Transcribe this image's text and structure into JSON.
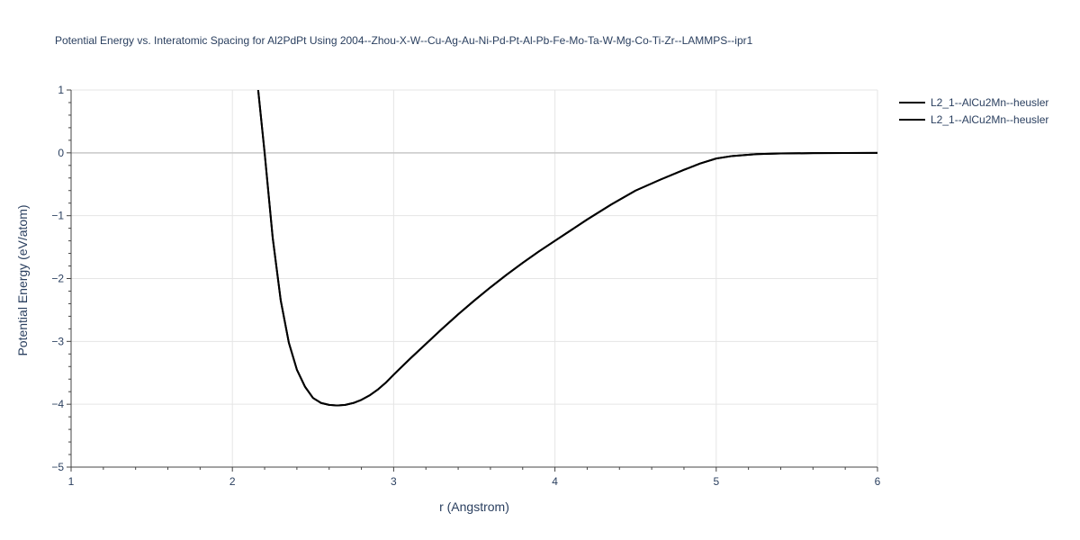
{
  "chart_data": {
    "type": "line",
    "title": "Potential Energy vs. Interatomic Spacing for Al2PdPt Using 2004--Zhou-X-W--Cu-Ag-Au-Ni-Pd-Pt-Al-Pb-Fe-Mo-Ta-W-Mg-Co-Ti-Zr--LAMMPS--ipr1",
    "xlabel": "r (Angstrom)",
    "ylabel": "Potential Energy (eV/atom)",
    "xlim": [
      1,
      6
    ],
    "ylim": [
      -5,
      1
    ],
    "xticks": [
      1,
      2,
      3,
      4,
      5,
      6
    ],
    "xtick_labels": [
      "1",
      "2",
      "3",
      "4",
      "5",
      "6"
    ],
    "yticks": [
      1,
      0,
      -1,
      -2,
      -3,
      -4,
      -5
    ],
    "ytick_labels": [
      "1",
      "0",
      "−1",
      "−2",
      "−3",
      "−4",
      "−5"
    ],
    "grid": true,
    "legend_position": "top-right outside",
    "series": [
      {
        "name": "L2_1--AlCu2Mn--heusler",
        "color": "#000000",
        "x": [
          2.16,
          2.2,
          2.25,
          2.3,
          2.35,
          2.4,
          2.45,
          2.5,
          2.55,
          2.6,
          2.65,
          2.7,
          2.75,
          2.8,
          2.85,
          2.9,
          2.95,
          3.0,
          3.1,
          3.2,
          3.3,
          3.4,
          3.5,
          3.6,
          3.7,
          3.8,
          3.9,
          4.0,
          4.1,
          4.2,
          4.35,
          4.5,
          4.65,
          4.8,
          4.9,
          5.0,
          5.1,
          5.25,
          5.4,
          5.6,
          5.8,
          6.0
        ],
        "y": [
          1.0,
          0.0,
          -1.35,
          -2.35,
          -3.02,
          -3.45,
          -3.72,
          -3.9,
          -3.98,
          -4.01,
          -4.02,
          -4.01,
          -3.98,
          -3.93,
          -3.86,
          -3.77,
          -3.66,
          -3.53,
          -3.28,
          -3.04,
          -2.8,
          -2.57,
          -2.35,
          -2.14,
          -1.94,
          -1.75,
          -1.57,
          -1.4,
          -1.23,
          -1.06,
          -0.82,
          -0.6,
          -0.43,
          -0.27,
          -0.17,
          -0.09,
          -0.05,
          -0.02,
          -0.01,
          -0.005,
          -0.002,
          0.0
        ]
      },
      {
        "name": "L2_1--AlCu2Mn--heusler",
        "color": "#000000",
        "x": [
          2.16,
          2.2,
          2.25,
          2.3,
          2.35,
          2.4,
          2.45,
          2.5,
          2.55,
          2.6,
          2.65,
          2.7,
          2.75,
          2.8,
          2.85,
          2.9,
          2.95,
          3.0,
          3.1,
          3.2,
          3.3,
          3.4,
          3.5,
          3.6,
          3.7,
          3.8,
          3.9,
          4.0,
          4.1,
          4.2,
          4.35,
          4.5,
          4.65,
          4.8,
          4.9,
          5.0,
          5.1,
          5.25,
          5.4,
          5.6,
          5.8,
          6.0
        ],
        "y": [
          1.0,
          0.0,
          -1.35,
          -2.35,
          -3.02,
          -3.45,
          -3.72,
          -3.9,
          -3.98,
          -4.01,
          -4.02,
          -4.01,
          -3.98,
          -3.93,
          -3.86,
          -3.77,
          -3.66,
          -3.53,
          -3.28,
          -3.04,
          -2.8,
          -2.57,
          -2.35,
          -2.14,
          -1.94,
          -1.75,
          -1.57,
          -1.4,
          -1.23,
          -1.06,
          -0.82,
          -0.6,
          -0.43,
          -0.27,
          -0.17,
          -0.09,
          -0.05,
          -0.02,
          -0.01,
          -0.005,
          -0.002,
          0.0
        ]
      }
    ]
  }
}
